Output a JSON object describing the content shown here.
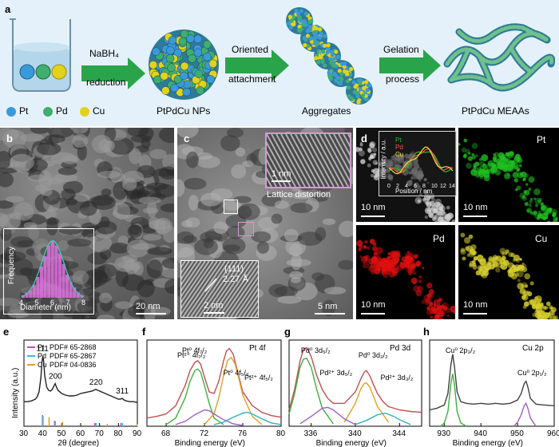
{
  "panel_a": {
    "label": "a",
    "step1_top": "NaBH₄",
    "step1_bottom": "reduction",
    "step2_top": "Oriented",
    "step2_bottom": "attachment",
    "step3_top": "Gelation",
    "step3_bottom": "process",
    "product1": "PtPdCu NPs",
    "product2": "Aggregates",
    "product3": "PtPdCu MEAAs",
    "legend": [
      {
        "label": "Pt",
        "color": "#3a9ad9"
      },
      {
        "label": "Pd",
        "color": "#3fae6e"
      },
      {
        "label": "Cu",
        "color": "#e3d21a"
      }
    ]
  },
  "panel_b": {
    "label": "b",
    "scale": "20 nm",
    "inset_ylabel": "Frequency",
    "inset_xlabel": "Diameter (nm)",
    "inset_ticks": [
      "4",
      "5",
      "6",
      "7",
      "8"
    ]
  },
  "panel_c": {
    "label": "c",
    "scale": "5 nm",
    "inset_top_scale": "1 nm",
    "inset_top_caption": "Lattice distortion",
    "inset_bottom_plane": "(111)",
    "inset_bottom_spacing": "2.27 Å",
    "inset_bottom_scale": "2 nm"
  },
  "panel_d": {
    "label": "d",
    "tiles": [
      {
        "channel": "",
        "scale": "10 nm",
        "color": "#cfcfcf"
      },
      {
        "channel": "Pt",
        "scale": "10 nm",
        "color": "#20c020"
      },
      {
        "channel": "Pd",
        "scale": "10 nm",
        "color": "#e01010"
      },
      {
        "channel": "Cu",
        "scale": "10 nm",
        "color": "#d8d030"
      }
    ],
    "inset_ylabel": "Intensity / a.u.",
    "inset_xlabel": "Position / nm",
    "inset_legend": [
      "Pt",
      "Pd",
      "Cu"
    ],
    "inset_ticks": [
      "0",
      "2",
      "4",
      "6",
      "8",
      "10",
      "12",
      "14"
    ]
  },
  "chart_data": [
    {
      "type": "line",
      "panel": "e",
      "xlabel": "2θ (degree)",
      "ylabel": "Intensity (a.u.)",
      "xlim": [
        30,
        90
      ],
      "xticks": [
        "30",
        "40",
        "50",
        "60",
        "70",
        "80",
        "90"
      ],
      "peak_labels": [
        {
          "text": "111",
          "x": 40
        },
        {
          "text": "200",
          "x": 46.5
        },
        {
          "text": "220",
          "x": 68
        },
        {
          "text": "311",
          "x": 82
        }
      ],
      "legend": [
        {
          "name": "Pt",
          "pdf": "PDF# 65-2868",
          "color": "#c050c0"
        },
        {
          "name": "Pd",
          "pdf": "PDF# 65-2867",
          "color": "#30c0d0"
        },
        {
          "name": "Cu",
          "pdf": "PDF# 04-0836",
          "color": "#e0a020"
        }
      ],
      "series": [
        {
          "name": "",
          "x": [
            30,
            32,
            34,
            36,
            37,
            38,
            39,
            39.5,
            40,
            40.5,
            41,
            42,
            43,
            44,
            45,
            46,
            46.5,
            47,
            48,
            50,
            52,
            54,
            56,
            58,
            60,
            62,
            64,
            66,
            67,
            68,
            69,
            70,
            72,
            74,
            76,
            78,
            80,
            81,
            82,
            83,
            84,
            86,
            88,
            90
          ],
          "y": [
            0.3,
            0.3,
            0.31,
            0.33,
            0.36,
            0.42,
            0.6,
            0.78,
            0.86,
            0.78,
            0.62,
            0.48,
            0.44,
            0.43,
            0.45,
            0.5,
            0.52,
            0.49,
            0.44,
            0.4,
            0.38,
            0.37,
            0.37,
            0.38,
            0.4,
            0.41,
            0.42,
            0.43,
            0.44,
            0.45,
            0.44,
            0.43,
            0.41,
            0.39,
            0.37,
            0.35,
            0.33,
            0.33,
            0.34,
            0.32,
            0.31,
            0.3,
            0.3,
            0.29
          ]
        }
      ],
      "ref_bars": [
        {
          "name": "Pt",
          "color": "#c050c0",
          "x": [
            39.8,
            46.2,
            67.5,
            81.3
          ],
          "h": [
            1.0,
            0.5,
            0.3,
            0.3
          ]
        },
        {
          "name": "Pd",
          "color": "#30c0d0",
          "x": [
            40.1,
            46.6,
            68.1,
            82.1
          ],
          "h": [
            0.9,
            0.45,
            0.28,
            0.3
          ]
        },
        {
          "name": "Cu",
          "color": "#e0a020",
          "x": [
            43.3,
            50.4,
            74.1,
            89.9
          ],
          "h": [
            0.8,
            0.38,
            0.22,
            0.2
          ]
        }
      ]
    },
    {
      "type": "line",
      "panel": "f",
      "title": "Pt 4f",
      "xlabel": "Binding energy (eV)",
      "xlim": [
        66,
        80
      ],
      "xticks": [
        "68",
        "72",
        "76",
        "80"
      ],
      "annotations": [
        {
          "text": "Pt⁰ 4f₇/₂",
          "x": 70.5
        },
        {
          "text": "Pt⁰ 4f₅/₂",
          "x": 74.8
        },
        {
          "text": "Pt²⁺ 4f₇/₂",
          "x": 70.0
        },
        {
          "text": "Pt²⁺ 4f₅/₂",
          "x": 78.0
        }
      ],
      "series": [
        {
          "name": "raw",
          "color": "#c05050",
          "x": [
            66,
            67,
            68,
            69,
            70,
            70.5,
            71,
            71.3,
            71.6,
            72,
            72.5,
            73,
            73.5,
            74,
            74.3,
            74.6,
            75,
            75.5,
            76,
            77,
            78,
            79,
            80
          ],
          "y": [
            0.1,
            0.12,
            0.15,
            0.25,
            0.5,
            0.68,
            0.78,
            0.8,
            0.76,
            0.6,
            0.42,
            0.4,
            0.55,
            0.8,
            0.92,
            0.95,
            0.88,
            0.65,
            0.42,
            0.25,
            0.17,
            0.13,
            0.11
          ]
        },
        {
          "name": "Pt0 4f7/2",
          "color": "#3fae3f",
          "x": [
            68,
            69,
            70,
            70.5,
            71,
            71.3,
            71.6,
            72,
            72.5,
            73,
            74
          ],
          "y": [
            0.02,
            0.1,
            0.35,
            0.55,
            0.68,
            0.7,
            0.66,
            0.5,
            0.28,
            0.1,
            0.02
          ]
        },
        {
          "name": "Pt0 4f5/2",
          "color": "#e0a020",
          "x": [
            72,
            73,
            73.5,
            74,
            74.4,
            74.8,
            75.2,
            75.6,
            76,
            77,
            78
          ],
          "y": [
            0.02,
            0.15,
            0.35,
            0.62,
            0.8,
            0.84,
            0.76,
            0.58,
            0.38,
            0.12,
            0.02
          ]
        },
        {
          "name": "Pt2+ 4f7/2",
          "color": "#a060c0",
          "x": [
            69,
            70,
            71,
            72,
            72.5,
            73,
            74,
            75,
            76
          ],
          "y": [
            0.02,
            0.06,
            0.14,
            0.2,
            0.19,
            0.15,
            0.08,
            0.03,
            0.01
          ]
        },
        {
          "name": "Pt2+ 4f5/2",
          "color": "#30b0c0",
          "x": [
            73,
            74,
            75,
            76,
            76.5,
            77,
            78,
            79,
            80
          ],
          "y": [
            0.02,
            0.05,
            0.11,
            0.16,
            0.17,
            0.15,
            0.09,
            0.04,
            0.02
          ]
        }
      ]
    },
    {
      "type": "line",
      "panel": "g",
      "title": "Pd 3d",
      "xlabel": "Binding energy (eV)",
      "xlim": [
        334,
        346
      ],
      "xticks": [
        "336",
        "340",
        "344"
      ],
      "annotations": [
        {
          "text": "Pd⁰ 3d₅/₂",
          "x": 335.8
        },
        {
          "text": "Pd²⁺ 3d₅/₂",
          "x": 337.5
        },
        {
          "text": "Pd⁰ 3d₃/₂",
          "x": 341.0
        },
        {
          "text": "Pd²⁺ 3d₃/₂",
          "x": 343.0
        }
      ],
      "series": [
        {
          "name": "raw",
          "color": "#c05050",
          "x": [
            334,
            334.5,
            335,
            335.3,
            335.6,
            336,
            336.5,
            337,
            337.5,
            338,
            339,
            340,
            340.5,
            340.8,
            341,
            341.3,
            341.6,
            342,
            342.5,
            343,
            344,
            345,
            346
          ],
          "y": [
            0.2,
            0.45,
            0.8,
            0.94,
            0.96,
            0.85,
            0.62,
            0.45,
            0.34,
            0.28,
            0.28,
            0.42,
            0.58,
            0.66,
            0.68,
            0.62,
            0.52,
            0.4,
            0.3,
            0.24,
            0.2,
            0.18,
            0.17
          ]
        },
        {
          "name": "Pd0 3d5/2",
          "color": "#3fae3f",
          "x": [
            334,
            334.5,
            335,
            335.3,
            335.6,
            336,
            336.5,
            337,
            338
          ],
          "y": [
            0.15,
            0.4,
            0.72,
            0.82,
            0.83,
            0.72,
            0.45,
            0.22,
            0.03
          ]
        },
        {
          "name": "Pd0 3d3/2",
          "color": "#e0a020",
          "x": [
            339,
            340,
            340.5,
            340.8,
            341,
            341.3,
            341.6,
            342,
            343
          ],
          "y": [
            0.05,
            0.28,
            0.46,
            0.52,
            0.53,
            0.48,
            0.38,
            0.24,
            0.05
          ]
        },
        {
          "name": "Pd2+ 3d5/2",
          "color": "#a060c0",
          "x": [
            335,
            336,
            337,
            337.5,
            338,
            339,
            340
          ],
          "y": [
            0.03,
            0.12,
            0.22,
            0.23,
            0.2,
            0.09,
            0.02
          ]
        },
        {
          "name": "Pd2+ 3d3/2",
          "color": "#30b0c0",
          "x": [
            340,
            341,
            342,
            342.7,
            343.5,
            344,
            345
          ],
          "y": [
            0.02,
            0.07,
            0.14,
            0.16,
            0.12,
            0.08,
            0.02
          ]
        }
      ]
    },
    {
      "type": "line",
      "panel": "h",
      "title": "Cu 2p",
      "xlabel": "Binding energy (eV)",
      "xlim": [
        926,
        960
      ],
      "xticks": [
        "930",
        "940",
        "950",
        "960"
      ],
      "annotations": [
        {
          "text": "Cu⁰ 2p₃/₂",
          "x": 932.5
        },
        {
          "text": "Cu⁰ 2p₁/₂",
          "x": 952.3
        }
      ],
      "series": [
        {
          "name": "raw",
          "color": "#404040",
          "x": [
            926,
            928,
            930,
            931,
            931.8,
            932.3,
            932.8,
            933.5,
            934.5,
            936,
            938,
            940,
            942,
            944,
            946,
            948,
            950,
            951,
            951.8,
            952.3,
            952.8,
            953.5,
            955,
            957,
            960
          ],
          "y": [
            0.2,
            0.22,
            0.26,
            0.4,
            0.75,
            0.88,
            0.72,
            0.42,
            0.3,
            0.28,
            0.27,
            0.28,
            0.27,
            0.28,
            0.27,
            0.28,
            0.32,
            0.4,
            0.52,
            0.55,
            0.48,
            0.34,
            0.27,
            0.26,
            0.25
          ]
        },
        {
          "name": "Cu0 2p3/2",
          "color": "#3fae3f",
          "x": [
            929,
            930,
            931,
            931.8,
            932.3,
            932.8,
            933.5,
            934.5,
            936
          ],
          "y": [
            0.0,
            0.04,
            0.18,
            0.52,
            0.64,
            0.5,
            0.18,
            0.04,
            0.0
          ]
        },
        {
          "name": "Cu0 2p1/2",
          "color": "#a060c0",
          "x": [
            949,
            950,
            951,
            951.8,
            952.3,
            952.8,
            953.5,
            955
          ],
          "y": [
            0.0,
            0.05,
            0.14,
            0.25,
            0.28,
            0.22,
            0.1,
            0.0
          ]
        }
      ]
    }
  ]
}
